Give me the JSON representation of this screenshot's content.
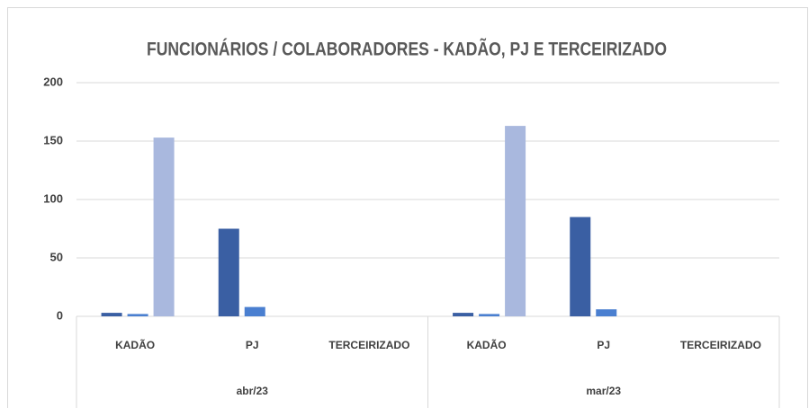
{
  "chart_data": {
    "type": "bar",
    "title": "FUNCIONÁRIOS / COLABORADORES - KADÃO, PJ E TERCEIRIZADO",
    "groups": [
      {
        "label": "abr/23",
        "categories": [
          "KADÃO",
          "PJ",
          "TERCEIRIZADO"
        ]
      },
      {
        "label": "mar/23",
        "categories": [
          "KADÃO",
          "PJ",
          "TERCEIRIZADO"
        ]
      }
    ],
    "series": [
      {
        "color": "#3a5fa3",
        "values": [
          3,
          75,
          0,
          3,
          85,
          0
        ]
      },
      {
        "color": "#4a7fd0",
        "values": [
          2,
          8,
          0,
          2,
          6,
          0
        ]
      },
      {
        "color": "#a9b8de",
        "values": [
          153,
          0,
          0,
          163,
          0,
          0
        ]
      }
    ],
    "ylim": [
      0,
      200
    ],
    "yticks": [
      0,
      50,
      100,
      150,
      200
    ],
    "grid": true
  }
}
